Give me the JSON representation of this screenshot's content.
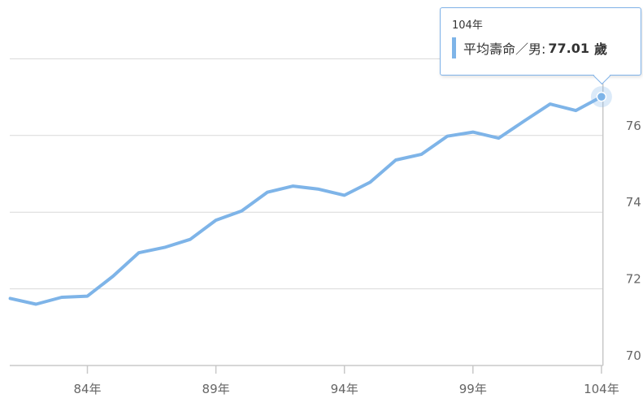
{
  "chart_data": {
    "type": "line",
    "x": [
      81,
      82,
      83,
      84,
      85,
      86,
      87,
      88,
      89,
      90,
      91,
      92,
      93,
      94,
      95,
      96,
      97,
      98,
      99,
      100,
      101,
      102,
      103,
      104
    ],
    "x_tick_values": [
      84,
      89,
      94,
      99,
      104
    ],
    "x_tick_labels": [
      "84年",
      "89年",
      "94年",
      "99年",
      "104年"
    ],
    "y_ticks": [
      70,
      72,
      74,
      76
    ],
    "ylim": [
      70,
      77.8
    ],
    "y_axis_position": "right",
    "grid": true,
    "series": [
      {
        "name": "平均壽命／男",
        "color": "#7eb4e8",
        "values": [
          71.75,
          71.6,
          71.78,
          71.81,
          72.33,
          72.94,
          73.08,
          73.29,
          73.79,
          74.03,
          74.52,
          74.68,
          74.6,
          74.44,
          74.78,
          75.36,
          75.51,
          75.98,
          76.09,
          75.93,
          76.38,
          76.82,
          76.65,
          77.01
        ]
      }
    ],
    "highlight_index": 23
  },
  "tooltip": {
    "header": "104年",
    "series_label": "平均壽命／男:",
    "value": "77.01",
    "unit": "歲",
    "border_color": "#7fb2e8"
  }
}
